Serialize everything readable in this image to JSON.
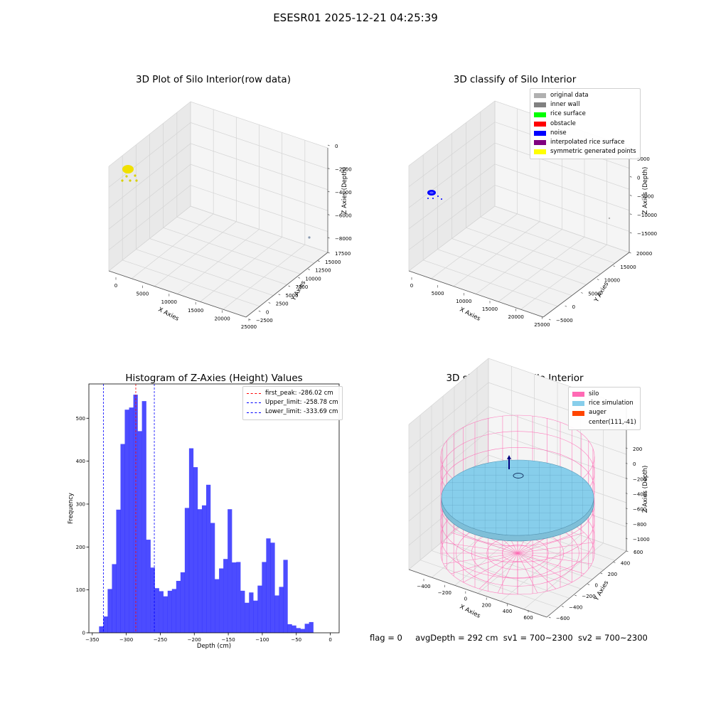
{
  "suptitle": "ESESR01 2025-12-21 04:25:39",
  "panel_raw": {
    "title": "3D Plot of Silo Interior(row data)",
    "x_label": "X Axies",
    "y_label": "Y Axies",
    "z_label": "Z Axies (Depth)",
    "x_ticks": [
      "0",
      "5000",
      "10000",
      "15000",
      "20000",
      "25000"
    ],
    "y_ticks": [
      "−2500",
      "0",
      "2500",
      "5000",
      "7500",
      "10000",
      "12500",
      "15000",
      "17500"
    ],
    "z_ticks": [
      "−8000",
      "−6000",
      "−4000",
      "−2000",
      "0"
    ]
  },
  "panel_classify": {
    "title": "3D classify of Silo Interior",
    "x_label": "X Axies",
    "y_label": "Y Axies",
    "z_label": "Z Axies (Depth)",
    "x_ticks": [
      "0",
      "5000",
      "10000",
      "15000",
      "20000",
      "25000"
    ],
    "y_ticks": [
      "−5000",
      "0",
      "5000",
      "10000",
      "15000",
      "20000"
    ],
    "z_ticks": [
      "−15000",
      "−10000",
      "−5000",
      "0",
      "5000"
    ],
    "legend": [
      {
        "label": "original data",
        "color": "#b0b0b0"
      },
      {
        "label": "inner wall",
        "color": "#808080"
      },
      {
        "label": "rice surface",
        "color": "#00ff00"
      },
      {
        "label": "obstacle",
        "color": "#ff0000"
      },
      {
        "label": "noise",
        "color": "#0000ff"
      },
      {
        "label": "interpolated rice surface",
        "color": "#800080"
      },
      {
        "label": "symmetric generated points",
        "color": "#ffff00"
      }
    ]
  },
  "panel_sim": {
    "title": "3D simulation of Silo Interior",
    "x_label": "X Axies",
    "y_label": "Y Axies",
    "z_label": "Z Axies (Depth)",
    "x_ticks": [
      "−400",
      "−200",
      "0",
      "200",
      "400",
      "600"
    ],
    "y_ticks": [
      "−600",
      "−400",
      "−200",
      "0",
      "200",
      "400",
      "600"
    ],
    "z_ticks": [
      "−1000",
      "−800",
      "−600",
      "−400",
      "−200",
      "0",
      "200"
    ],
    "legend": [
      {
        "label": "silo",
        "color": "#ff69b4"
      },
      {
        "label": "rice simulation",
        "color": "#87ceeb"
      },
      {
        "label": "auger",
        "color": "#ff4500"
      },
      {
        "label": "center(111,-41)",
        "color": ""
      }
    ]
  },
  "status": {
    "flag": "flag = 0",
    "avg_depth": "avgDepth = 292 cm",
    "sv1": "sv1 = 700~2300",
    "sv2": "sv2 = 700~2300"
  },
  "chart_data": {
    "type": "bar",
    "title": "Histogram of Z-Axies (Height) Values",
    "xlabel": "Depth (cm)",
    "ylabel": "Frequency",
    "xlim": [
      -355,
      13
    ],
    "ylim": [
      0,
      580
    ],
    "x_ticks": [
      -350,
      -300,
      -250,
      -200,
      -150,
      -100,
      -50,
      0
    ],
    "y_ticks": [
      0,
      100,
      200,
      300,
      400,
      500
    ],
    "bin_start": -340,
    "bin_width": 6.3,
    "values": [
      15,
      38,
      102,
      160,
      287,
      440,
      520,
      525,
      555,
      470,
      540,
      217,
      152,
      104,
      97,
      85,
      98,
      102,
      121,
      141,
      291,
      430,
      386,
      288,
      297,
      345,
      256,
      125,
      150,
      172,
      288,
      164,
      165,
      98,
      70,
      94,
      75,
      110,
      165,
      220,
      210,
      87,
      107,
      170,
      20,
      17,
      11,
      9,
      21,
      25
    ],
    "bar_color": "#0000ff",
    "legend_position": "top-right",
    "lines": [
      {
        "label": "first_peak: -286.02 cm",
        "x": -286.02,
        "color": "#ff0000"
      },
      {
        "label": "Upper_limit: -258.78 cm",
        "x": -258.78,
        "color": "#0000ff"
      },
      {
        "label": "Lower_limit: -333.69 cm",
        "x": -333.69,
        "color": "#0000ff"
      }
    ]
  }
}
